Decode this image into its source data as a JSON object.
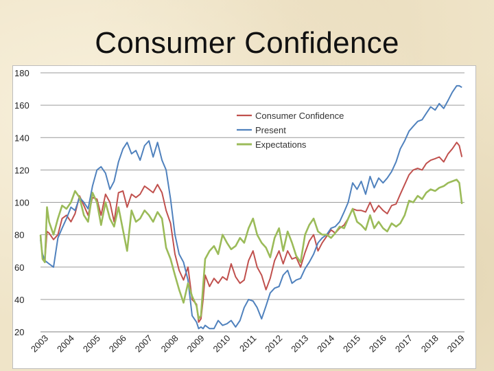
{
  "slide": {
    "title": "Consumer Confidence"
  },
  "chart_data": {
    "type": "line",
    "title": "",
    "xlabel": "",
    "ylabel": "",
    "ylim": [
      20,
      180
    ],
    "yticks": [
      20,
      40,
      60,
      80,
      100,
      120,
      140,
      160,
      180
    ],
    "xlim": [
      2003,
      2019.3
    ],
    "xticks": [
      "2003",
      "2004",
      "2005",
      "2006",
      "2007",
      "2008",
      "2009",
      "2010",
      "2011",
      "2012",
      "2013",
      "2014",
      "2015",
      "2016",
      "2017",
      "2018",
      "2019"
    ],
    "grid": "horizontal",
    "legend_position": "top-center",
    "series": [
      {
        "name": "Consumer Confidence",
        "color": "#c0504d",
        "x": [
          2003.0,
          2003.08,
          2003.17,
          2003.25,
          2003.33,
          2003.5,
          2003.67,
          2003.83,
          2004.0,
          2004.17,
          2004.33,
          2004.5,
          2004.67,
          2004.83,
          2005.0,
          2005.17,
          2005.33,
          2005.5,
          2005.67,
          2005.83,
          2006.0,
          2006.17,
          2006.33,
          2006.5,
          2006.67,
          2006.83,
          2007.0,
          2007.17,
          2007.33,
          2007.5,
          2007.67,
          2007.83,
          2008.0,
          2008.17,
          2008.33,
          2008.5,
          2008.67,
          2008.83,
          2009.0,
          2009.08,
          2009.17,
          2009.25,
          2009.33,
          2009.5,
          2009.67,
          2009.83,
          2010.0,
          2010.17,
          2010.33,
          2010.5,
          2010.67,
          2010.83,
          2011.0,
          2011.17,
          2011.33,
          2011.5,
          2011.67,
          2011.83,
          2012.0,
          2012.17,
          2012.33,
          2012.5,
          2012.67,
          2012.83,
          2013.0,
          2013.17,
          2013.33,
          2013.5,
          2013.67,
          2013.83,
          2014.0,
          2014.17,
          2014.33,
          2014.5,
          2014.67,
          2014.83,
          2015.0,
          2015.17,
          2015.33,
          2015.5,
          2015.67,
          2015.83,
          2016.0,
          2016.17,
          2016.33,
          2016.5,
          2016.67,
          2016.83,
          2017.0,
          2017.17,
          2017.33,
          2017.5,
          2017.67,
          2017.83,
          2018.0,
          2018.17,
          2018.33,
          2018.5,
          2018.67,
          2018.83,
          2019.0,
          2019.1,
          2019.2
        ],
        "values": [
          79,
          66,
          64,
          82,
          81,
          77,
          80,
          90,
          92,
          88,
          93,
          104,
          98,
          92,
          103,
          102,
          92,
          105,
          100,
          88,
          106,
          107,
          97,
          105,
          103,
          105,
          110,
          108,
          106,
          111,
          106,
          95,
          87,
          68,
          58,
          52,
          60,
          40,
          37,
          26,
          28,
          40,
          55,
          48,
          53,
          50,
          54,
          52,
          62,
          54,
          50,
          52,
          64,
          70,
          60,
          55,
          46,
          53,
          64,
          70,
          62,
          70,
          65,
          66,
          60,
          69,
          76,
          80,
          70,
          75,
          79,
          83,
          81,
          84,
          86,
          90,
          96,
          95,
          95,
          94,
          100,
          94,
          98,
          95,
          93,
          98,
          99,
          105,
          111,
          117,
          120,
          121,
          120,
          124,
          126,
          127,
          128,
          125,
          130,
          133,
          137,
          135,
          128
        ]
      },
      {
        "name": "Present",
        "color": "#4f81bd",
        "x": [
          2003.0,
          2003.08,
          2003.17,
          2003.25,
          2003.33,
          2003.5,
          2003.67,
          2003.83,
          2004.0,
          2004.17,
          2004.33,
          2004.5,
          2004.67,
          2004.83,
          2005.0,
          2005.17,
          2005.33,
          2005.5,
          2005.67,
          2005.83,
          2006.0,
          2006.17,
          2006.33,
          2006.5,
          2006.67,
          2006.83,
          2007.0,
          2007.17,
          2007.33,
          2007.5,
          2007.67,
          2007.83,
          2008.0,
          2008.17,
          2008.33,
          2008.5,
          2008.67,
          2008.83,
          2009.0,
          2009.08,
          2009.17,
          2009.25,
          2009.33,
          2009.5,
          2009.67,
          2009.83,
          2010.0,
          2010.17,
          2010.33,
          2010.5,
          2010.67,
          2010.83,
          2011.0,
          2011.17,
          2011.33,
          2011.5,
          2011.67,
          2011.83,
          2012.0,
          2012.17,
          2012.33,
          2012.5,
          2012.67,
          2012.83,
          2013.0,
          2013.17,
          2013.33,
          2013.5,
          2013.67,
          2013.83,
          2014.0,
          2014.17,
          2014.33,
          2014.5,
          2014.67,
          2014.83,
          2015.0,
          2015.17,
          2015.33,
          2015.5,
          2015.67,
          2015.83,
          2016.0,
          2016.17,
          2016.33,
          2016.5,
          2016.67,
          2016.83,
          2017.0,
          2017.17,
          2017.33,
          2017.5,
          2017.67,
          2017.83,
          2018.0,
          2018.17,
          2018.33,
          2018.5,
          2018.67,
          2018.83,
          2019.0,
          2019.1,
          2019.2
        ],
        "values": [
          77,
          68,
          64,
          63,
          62,
          60,
          78,
          84,
          90,
          97,
          95,
          103,
          100,
          96,
          110,
          120,
          122,
          118,
          108,
          113,
          125,
          133,
          137,
          130,
          132,
          126,
          135,
          138,
          128,
          137,
          126,
          120,
          102,
          80,
          68,
          63,
          52,
          30,
          26,
          22,
          23,
          22,
          24,
          22,
          22,
          27,
          24,
          25,
          27,
          23,
          27,
          35,
          40,
          39,
          35,
          28,
          36,
          44,
          47,
          48,
          55,
          58,
          50,
          52,
          53,
          59,
          63,
          68,
          75,
          78,
          80,
          84,
          85,
          88,
          94,
          100,
          112,
          108,
          113,
          105,
          116,
          109,
          115,
          112,
          115,
          119,
          125,
          133,
          138,
          144,
          147,
          150,
          151,
          155,
          159,
          157,
          161,
          158,
          163,
          168,
          172,
          172,
          171
        ]
      },
      {
        "name": "Expectations",
        "color": "#9bbb59",
        "x": [
          2003.0,
          2003.08,
          2003.17,
          2003.25,
          2003.33,
          2003.5,
          2003.67,
          2003.83,
          2004.0,
          2004.17,
          2004.33,
          2004.5,
          2004.67,
          2004.83,
          2005.0,
          2005.17,
          2005.33,
          2005.5,
          2005.67,
          2005.83,
          2006.0,
          2006.17,
          2006.33,
          2006.5,
          2006.67,
          2006.83,
          2007.0,
          2007.17,
          2007.33,
          2007.5,
          2007.67,
          2007.83,
          2008.0,
          2008.17,
          2008.33,
          2008.5,
          2008.67,
          2008.83,
          2009.0,
          2009.08,
          2009.17,
          2009.25,
          2009.33,
          2009.5,
          2009.67,
          2009.83,
          2010.0,
          2010.17,
          2010.33,
          2010.5,
          2010.67,
          2010.83,
          2011.0,
          2011.17,
          2011.33,
          2011.5,
          2011.67,
          2011.83,
          2012.0,
          2012.17,
          2012.33,
          2012.5,
          2012.67,
          2012.83,
          2013.0,
          2013.17,
          2013.33,
          2013.5,
          2013.67,
          2013.83,
          2014.0,
          2014.17,
          2014.33,
          2014.5,
          2014.67,
          2014.83,
          2015.0,
          2015.17,
          2015.33,
          2015.5,
          2015.67,
          2015.83,
          2016.0,
          2016.17,
          2016.33,
          2016.5,
          2016.67,
          2016.83,
          2017.0,
          2017.17,
          2017.33,
          2017.5,
          2017.67,
          2017.83,
          2018.0,
          2018.17,
          2018.33,
          2018.5,
          2018.67,
          2018.83,
          2019.0,
          2019.1,
          2019.2
        ],
        "values": [
          80,
          65,
          63,
          97,
          88,
          80,
          90,
          98,
          96,
          100,
          107,
          103,
          92,
          88,
          106,
          100,
          86,
          100,
          90,
          85,
          97,
          83,
          70,
          95,
          88,
          90,
          95,
          92,
          88,
          94,
          90,
          72,
          65,
          55,
          46,
          38,
          50,
          42,
          36,
          28,
          30,
          48,
          65,
          70,
          73,
          68,
          80,
          75,
          71,
          73,
          78,
          75,
          84,
          90,
          80,
          75,
          72,
          66,
          78,
          84,
          70,
          82,
          75,
          67,
          63,
          80,
          86,
          90,
          82,
          80,
          80,
          78,
          81,
          85,
          84,
          90,
          96,
          88,
          86,
          83,
          92,
          84,
          88,
          84,
          82,
          87,
          85,
          87,
          92,
          101,
          100,
          104,
          102,
          106,
          108,
          107,
          109,
          110,
          112,
          113,
          114,
          112,
          99
        ]
      }
    ]
  }
}
